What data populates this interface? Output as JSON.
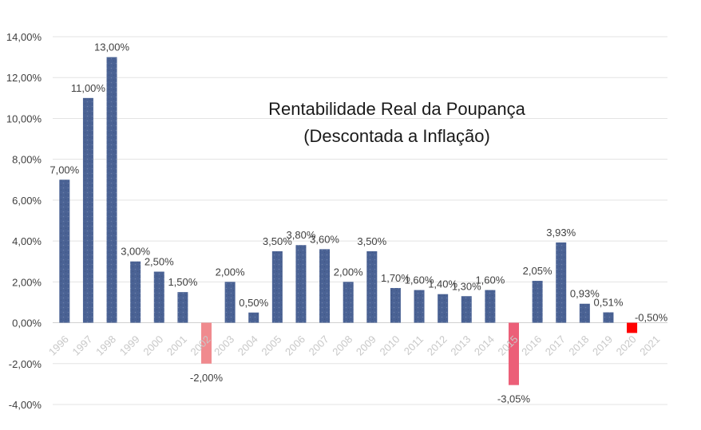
{
  "chart_data": {
    "type": "bar",
    "title_lines": [
      "Rentabilidade Real da Poupança",
      "(Descontada a Inflação)"
    ],
    "xlabel": "",
    "ylabel": "",
    "ylim": [
      -4,
      14
    ],
    "y_ticks": [
      {
        "value": -4,
        "label": "-4,00%"
      },
      {
        "value": -2,
        "label": "-2,00%"
      },
      {
        "value": 0,
        "label": "0,00%"
      },
      {
        "value": 2,
        "label": "2,00%"
      },
      {
        "value": 4,
        "label": "4,00%"
      },
      {
        "value": 6,
        "label": "6,00%"
      },
      {
        "value": 8,
        "label": "8,00%"
      },
      {
        "value": 10,
        "label": "10,00%"
      },
      {
        "value": 12,
        "label": "12,00%"
      },
      {
        "value": 14,
        "label": "14,00%"
      }
    ],
    "grid": true,
    "colors": {
      "positive": "#4a6294",
      "negative_2002": "#f08a8e",
      "negative_2015": "#ec5f78",
      "negative_2020": "#ff0000"
    },
    "categories": [
      "1996",
      "1997",
      "1998",
      "1999",
      "2000",
      "2001",
      "2002",
      "2003",
      "2004",
      "2005",
      "2006",
      "2007",
      "2008",
      "2009",
      "2010",
      "2011",
      "2012",
      "2013",
      "2014",
      "2015",
      "2016",
      "2017",
      "2018",
      "2019",
      "2020",
      "2021"
    ],
    "values": [
      7.0,
      11.0,
      13.0,
      3.0,
      2.5,
      1.5,
      -2.0,
      2.0,
      0.5,
      3.5,
      3.8,
      3.6,
      2.0,
      3.5,
      1.7,
      1.6,
      1.4,
      1.3,
      1.6,
      -3.05,
      2.05,
      3.93,
      0.93,
      0.51,
      -0.5,
      null
    ],
    "data_labels": [
      "7,00%",
      "11,00%",
      "13,00%",
      "3,00%",
      "2,50%",
      "1,50%",
      "-2,00%",
      "2,00%",
      "0,50%",
      "3,50%",
      "3,80%",
      "3,60%",
      "2,00%",
      "3,50%",
      "1,70%",
      "1,60%",
      "1,40%",
      "1,30%",
      "1,60%",
      "-3,05%",
      "2,05%",
      "3,93%",
      "0,93%",
      "0,51%",
      "-0,50%",
      ""
    ]
  }
}
